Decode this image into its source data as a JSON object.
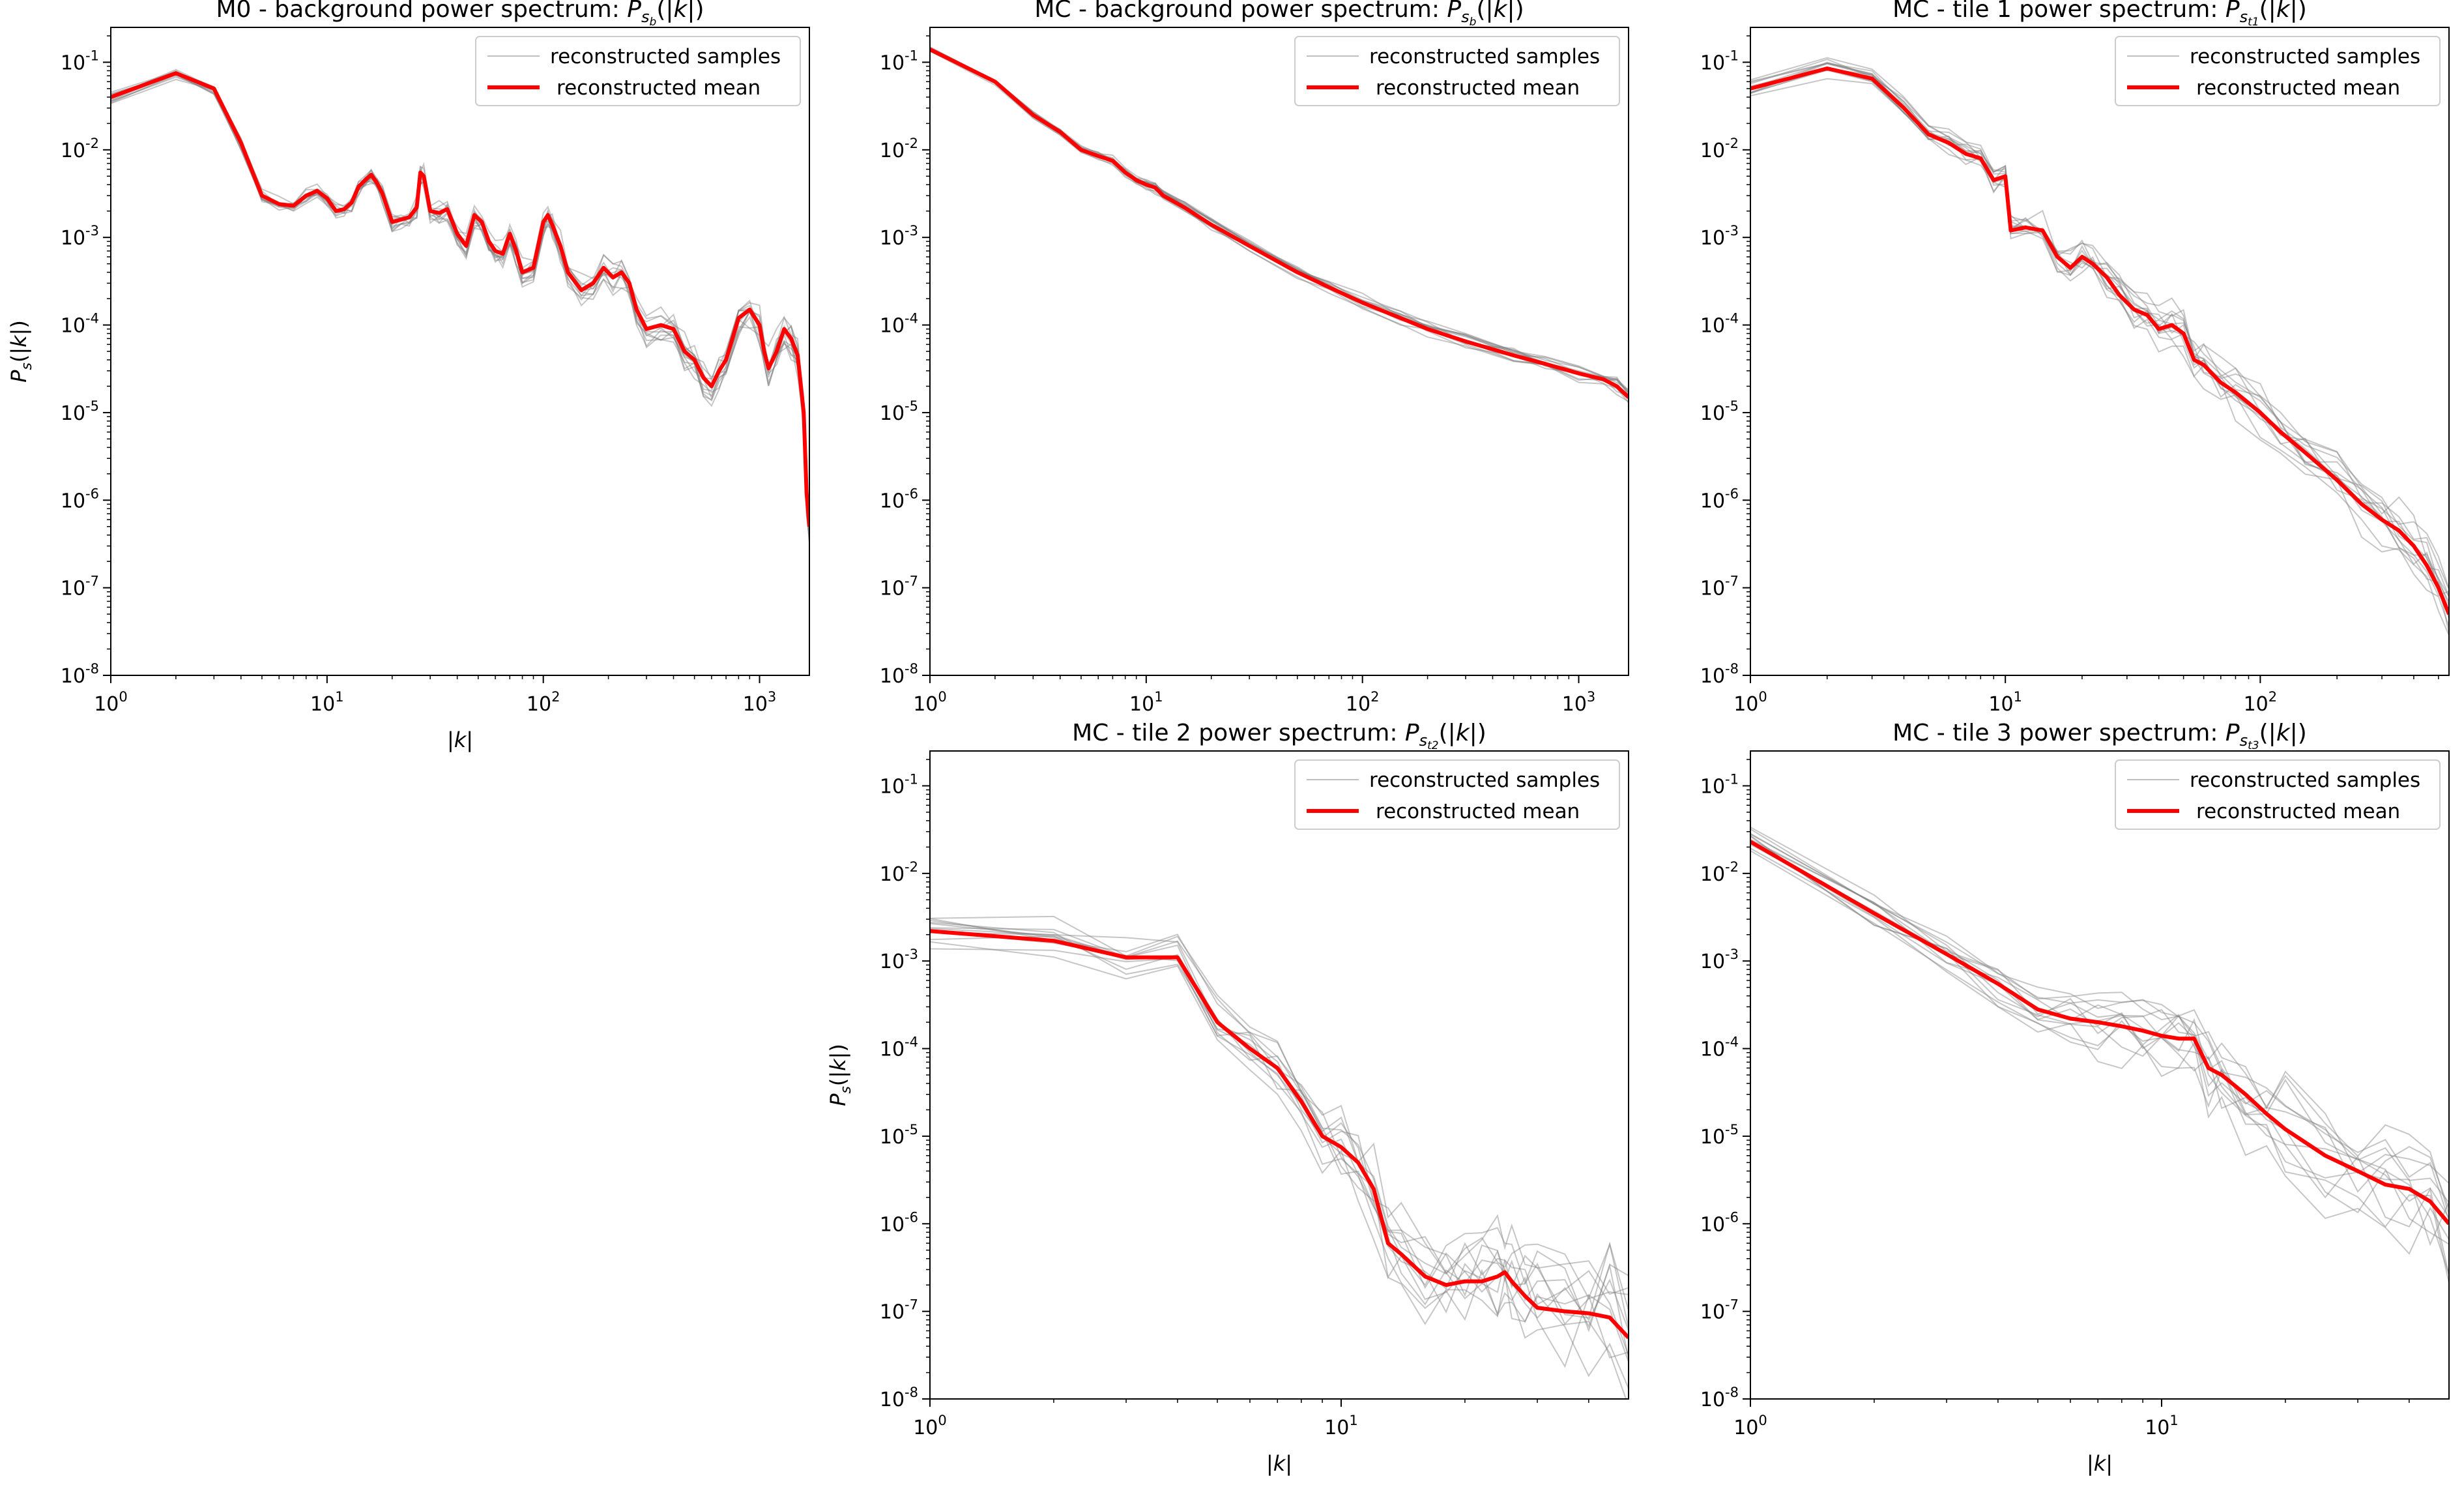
{
  "figure": {
    "background": "#ffffff",
    "mean_color": "#ff0000",
    "sample_color": "#808080"
  },
  "chart_data": [
    {
      "id": "m0-background",
      "type": "line",
      "title_prefix": "M0 - background power spectrum: ",
      "title_math": "P",
      "title_sub": "s",
      "title_subsub": "b",
      "title_suffix": "(|k|)",
      "xlabel": "|k|",
      "ylabel": "P_s(|k|)",
      "xscale": "log",
      "yscale": "log",
      "xlim": [
        1,
        1700
      ],
      "ylim": [
        1e-08,
        0.25
      ],
      "xticks": [
        {
          "v": 1,
          "e": "0"
        },
        {
          "v": 10,
          "e": "1"
        },
        {
          "v": 100,
          "e": "2"
        },
        {
          "v": 1000,
          "e": "3"
        }
      ],
      "yticks": [
        {
          "v": 1e-08,
          "e": "-8"
        },
        {
          "v": 1e-07,
          "e": "-7"
        },
        {
          "v": 1e-06,
          "e": "-6"
        },
        {
          "v": 1e-05,
          "e": "-5"
        },
        {
          "v": 0.0001,
          "e": "-4"
        },
        {
          "v": 0.001,
          "e": "-3"
        },
        {
          "v": 0.01,
          "e": "-2"
        },
        {
          "v": 0.1,
          "e": "-1"
        }
      ],
      "legend": {
        "position": "top-right",
        "samples_label": "reconstructed samples",
        "mean_label": "reconstructed mean"
      },
      "n_samples": 12,
      "sample_spread": 0.12,
      "mean": {
        "x": [
          1,
          2,
          3,
          4,
          5,
          6,
          7,
          8,
          9,
          10,
          11,
          12,
          13,
          14,
          15,
          16,
          17,
          18,
          20,
          22,
          24,
          26,
          27,
          28,
          30,
          33,
          36,
          40,
          44,
          48,
          52,
          56,
          60,
          65,
          70,
          75,
          80,
          90,
          100,
          105,
          110,
          120,
          130,
          150,
          170,
          190,
          210,
          230,
          250,
          270,
          300,
          350,
          400,
          450,
          500,
          550,
          600,
          650,
          700,
          800,
          900,
          1000,
          1050,
          1100,
          1200,
          1300,
          1400,
          1500,
          1600,
          1650,
          1700
        ],
        "y": [
          0.04,
          0.075,
          0.05,
          0.012,
          0.003,
          0.0024,
          0.0023,
          0.003,
          0.0034,
          0.0028,
          0.002,
          0.0021,
          0.0025,
          0.0038,
          0.0045,
          0.0052,
          0.0042,
          0.0032,
          0.0015,
          0.0016,
          0.0017,
          0.0022,
          0.0055,
          0.005,
          0.002,
          0.0019,
          0.0021,
          0.0011,
          0.0008,
          0.0018,
          0.0015,
          0.0009,
          0.0007,
          0.00065,
          0.0011,
          0.0007,
          0.0004,
          0.00045,
          0.0015,
          0.0018,
          0.0014,
          0.0008,
          0.0004,
          0.00025,
          0.0003,
          0.00045,
          0.00035,
          0.0004,
          0.0003,
          0.00015,
          9e-05,
          0.0001,
          9e-05,
          5e-05,
          4e-05,
          2.5e-05,
          2e-05,
          3e-05,
          4e-05,
          0.00012,
          0.00015,
          0.0001,
          5e-05,
          3.2e-05,
          5e-05,
          9e-05,
          7e-05,
          4.5e-05,
          1e-05,
          1.2e-06,
          5e-07
        ]
      }
    },
    {
      "id": "mc-background",
      "type": "line",
      "title_prefix": "MC - background power spectrum: ",
      "title_math": "P",
      "title_sub": "s",
      "title_subsub": "b",
      "title_suffix": "(|k|)",
      "xlabel": "",
      "ylabel": "",
      "xscale": "log",
      "yscale": "log",
      "xlim": [
        1,
        1700
      ],
      "ylim": [
        1e-08,
        0.25
      ],
      "xticks": [
        {
          "v": 1,
          "e": "0"
        },
        {
          "v": 10,
          "e": "1"
        },
        {
          "v": 100,
          "e": "2"
        },
        {
          "v": 1000,
          "e": "3"
        }
      ],
      "yticks": [
        {
          "v": 1e-08,
          "e": "-8"
        },
        {
          "v": 1e-07,
          "e": "-7"
        },
        {
          "v": 1e-06,
          "e": "-6"
        },
        {
          "v": 1e-05,
          "e": "-5"
        },
        {
          "v": 0.0001,
          "e": "-4"
        },
        {
          "v": 0.001,
          "e": "-3"
        },
        {
          "v": 0.01,
          "e": "-2"
        },
        {
          "v": 0.1,
          "e": "-1"
        }
      ],
      "legend": {
        "position": "top-right",
        "samples_label": "reconstructed samples",
        "mean_label": "reconstructed mean"
      },
      "n_samples": 12,
      "sample_spread": 0.06,
      "mean": {
        "x": [
          1,
          2,
          3,
          4,
          5,
          6,
          7,
          8,
          9,
          10,
          11,
          12,
          15,
          20,
          30,
          50,
          70,
          100,
          150,
          200,
          300,
          500,
          700,
          1000,
          1300,
          1500,
          1700
        ],
        "y": [
          0.14,
          0.06,
          0.025,
          0.016,
          0.01,
          0.0085,
          0.0075,
          0.0055,
          0.0045,
          0.004,
          0.0037,
          0.003,
          0.0022,
          0.0014,
          0.0008,
          0.0004,
          0.00027,
          0.00018,
          0.00012,
          9e-05,
          6.5e-05,
          4.5e-05,
          3.6e-05,
          2.8e-05,
          2.4e-05,
          2e-05,
          1.5e-05
        ]
      }
    },
    {
      "id": "mc-tile1",
      "type": "line",
      "title_prefix": "MC - tile 1 power spectrum: ",
      "title_math": "P",
      "title_sub": "s",
      "title_subsub": "t1",
      "title_suffix": "(|k|)",
      "xlabel": "",
      "ylabel": "",
      "xscale": "log",
      "yscale": "log",
      "xlim": [
        1,
        550
      ],
      "ylim": [
        1e-08,
        0.25
      ],
      "xticks": [
        {
          "v": 1,
          "e": "0"
        },
        {
          "v": 10,
          "e": "1"
        },
        {
          "v": 100,
          "e": "2"
        }
      ],
      "yticks": [
        {
          "v": 1e-08,
          "e": "-8"
        },
        {
          "v": 1e-07,
          "e": "-7"
        },
        {
          "v": 1e-06,
          "e": "-6"
        },
        {
          "v": 1e-05,
          "e": "-5"
        },
        {
          "v": 0.0001,
          "e": "-4"
        },
        {
          "v": 0.001,
          "e": "-3"
        },
        {
          "v": 0.01,
          "e": "-2"
        },
        {
          "v": 0.1,
          "e": "-1"
        }
      ],
      "legend": {
        "position": "top-right",
        "samples_label": "reconstructed samples",
        "mean_label": "reconstructed mean"
      },
      "n_samples": 12,
      "sample_spread": 0.2,
      "mean": {
        "x": [
          1,
          2,
          3,
          4,
          5,
          6,
          7,
          8,
          9,
          10,
          10.5,
          12,
          14,
          16,
          18,
          20,
          22,
          25,
          28,
          32,
          36,
          40,
          45,
          50,
          55,
          60,
          70,
          80,
          100,
          120,
          150,
          200,
          250,
          300,
          350,
          400,
          450,
          500,
          550
        ],
        "y": [
          0.05,
          0.085,
          0.065,
          0.03,
          0.015,
          0.012,
          0.009,
          0.008,
          0.0045,
          0.005,
          0.0012,
          0.0013,
          0.0012,
          0.0006,
          0.00045,
          0.0006,
          0.0005,
          0.00035,
          0.00022,
          0.00015,
          0.00013,
          9e-05,
          0.0001,
          8e-05,
          4e-05,
          3.5e-05,
          2.2e-05,
          1.7e-05,
          1e-05,
          6e-06,
          3.5e-06,
          1.7e-06,
          9e-07,
          6e-07,
          4.5e-07,
          3e-07,
          1.8e-07,
          1e-07,
          5e-08
        ]
      }
    },
    {
      "id": "mc-tile2",
      "type": "line",
      "title_prefix": "MC - tile 2 power spectrum: ",
      "title_math": "P",
      "title_sub": "s",
      "title_subsub": "t2",
      "title_suffix": "(|k|)",
      "xlabel": "|k|",
      "ylabel": "P_s(|k|)",
      "xscale": "log",
      "yscale": "log",
      "xlim": [
        1,
        50
      ],
      "ylim": [
        1e-08,
        0.25
      ],
      "xticks": [
        {
          "v": 1,
          "e": "0"
        },
        {
          "v": 10,
          "e": "1"
        }
      ],
      "yticks": [
        {
          "v": 1e-08,
          "e": "-8"
        },
        {
          "v": 1e-07,
          "e": "-7"
        },
        {
          "v": 1e-06,
          "e": "-6"
        },
        {
          "v": 1e-05,
          "e": "-5"
        },
        {
          "v": 0.0001,
          "e": "-4"
        },
        {
          "v": 0.001,
          "e": "-3"
        },
        {
          "v": 0.01,
          "e": "-2"
        },
        {
          "v": 0.1,
          "e": "-1"
        }
      ],
      "legend": {
        "position": "top-right",
        "samples_label": "reconstructed samples",
        "mean_label": "reconstructed mean"
      },
      "n_samples": 12,
      "sample_spread": 0.45,
      "mean": {
        "x": [
          1,
          2,
          3,
          4,
          5,
          6,
          7,
          8,
          9,
          10,
          11,
          12,
          13,
          14,
          16,
          18,
          20,
          22,
          24,
          25,
          26,
          28,
          30,
          35,
          40,
          45,
          50
        ],
        "y": [
          0.0022,
          0.0017,
          0.0011,
          0.0011,
          0.0002,
          0.0001,
          6e-05,
          2.5e-05,
          1e-05,
          7.5e-06,
          5e-06,
          2.5e-06,
          6e-07,
          4.5e-07,
          2.5e-07,
          2e-07,
          2.2e-07,
          2.2e-07,
          2.5e-07,
          2.8e-07,
          2.2e-07,
          1.5e-07,
          1.1e-07,
          1e-07,
          9.5e-08,
          8.5e-08,
          5e-08
        ]
      }
    },
    {
      "id": "mc-tile3",
      "type": "line",
      "title_prefix": "MC - tile 3 power spectrum: ",
      "title_math": "P",
      "title_sub": "s",
      "title_subsub": "t3",
      "title_suffix": "(|k|)",
      "xlabel": "|k|",
      "ylabel": "",
      "xscale": "log",
      "yscale": "log",
      "xlim": [
        1,
        50
      ],
      "ylim": [
        1e-08,
        0.25
      ],
      "xticks": [
        {
          "v": 1,
          "e": "0"
        },
        {
          "v": 10,
          "e": "1"
        }
      ],
      "yticks": [
        {
          "v": 1e-08,
          "e": "-8"
        },
        {
          "v": 1e-07,
          "e": "-7"
        },
        {
          "v": 1e-06,
          "e": "-6"
        },
        {
          "v": 1e-05,
          "e": "-5"
        },
        {
          "v": 0.0001,
          "e": "-4"
        },
        {
          "v": 0.001,
          "e": "-3"
        },
        {
          "v": 0.01,
          "e": "-2"
        },
        {
          "v": 0.1,
          "e": "-1"
        }
      ],
      "legend": {
        "position": "top-right",
        "samples_label": "reconstructed samples",
        "mean_label": "reconstructed mean"
      },
      "n_samples": 12,
      "sample_spread": 0.4,
      "mean": {
        "x": [
          1,
          2,
          3,
          4,
          5,
          6,
          7,
          8,
          9,
          10,
          11,
          12,
          13,
          14,
          16,
          18,
          20,
          25,
          30,
          35,
          40,
          45,
          50
        ],
        "y": [
          0.023,
          0.0035,
          0.0012,
          0.00055,
          0.00028,
          0.00022,
          0.0002,
          0.00018,
          0.00016,
          0.00014,
          0.00013,
          0.00013,
          6e-05,
          5e-05,
          3e-05,
          1.8e-05,
          1.2e-05,
          6e-06,
          4e-06,
          2.8e-06,
          2.5e-06,
          1.8e-06,
          1e-06
        ]
      }
    }
  ]
}
